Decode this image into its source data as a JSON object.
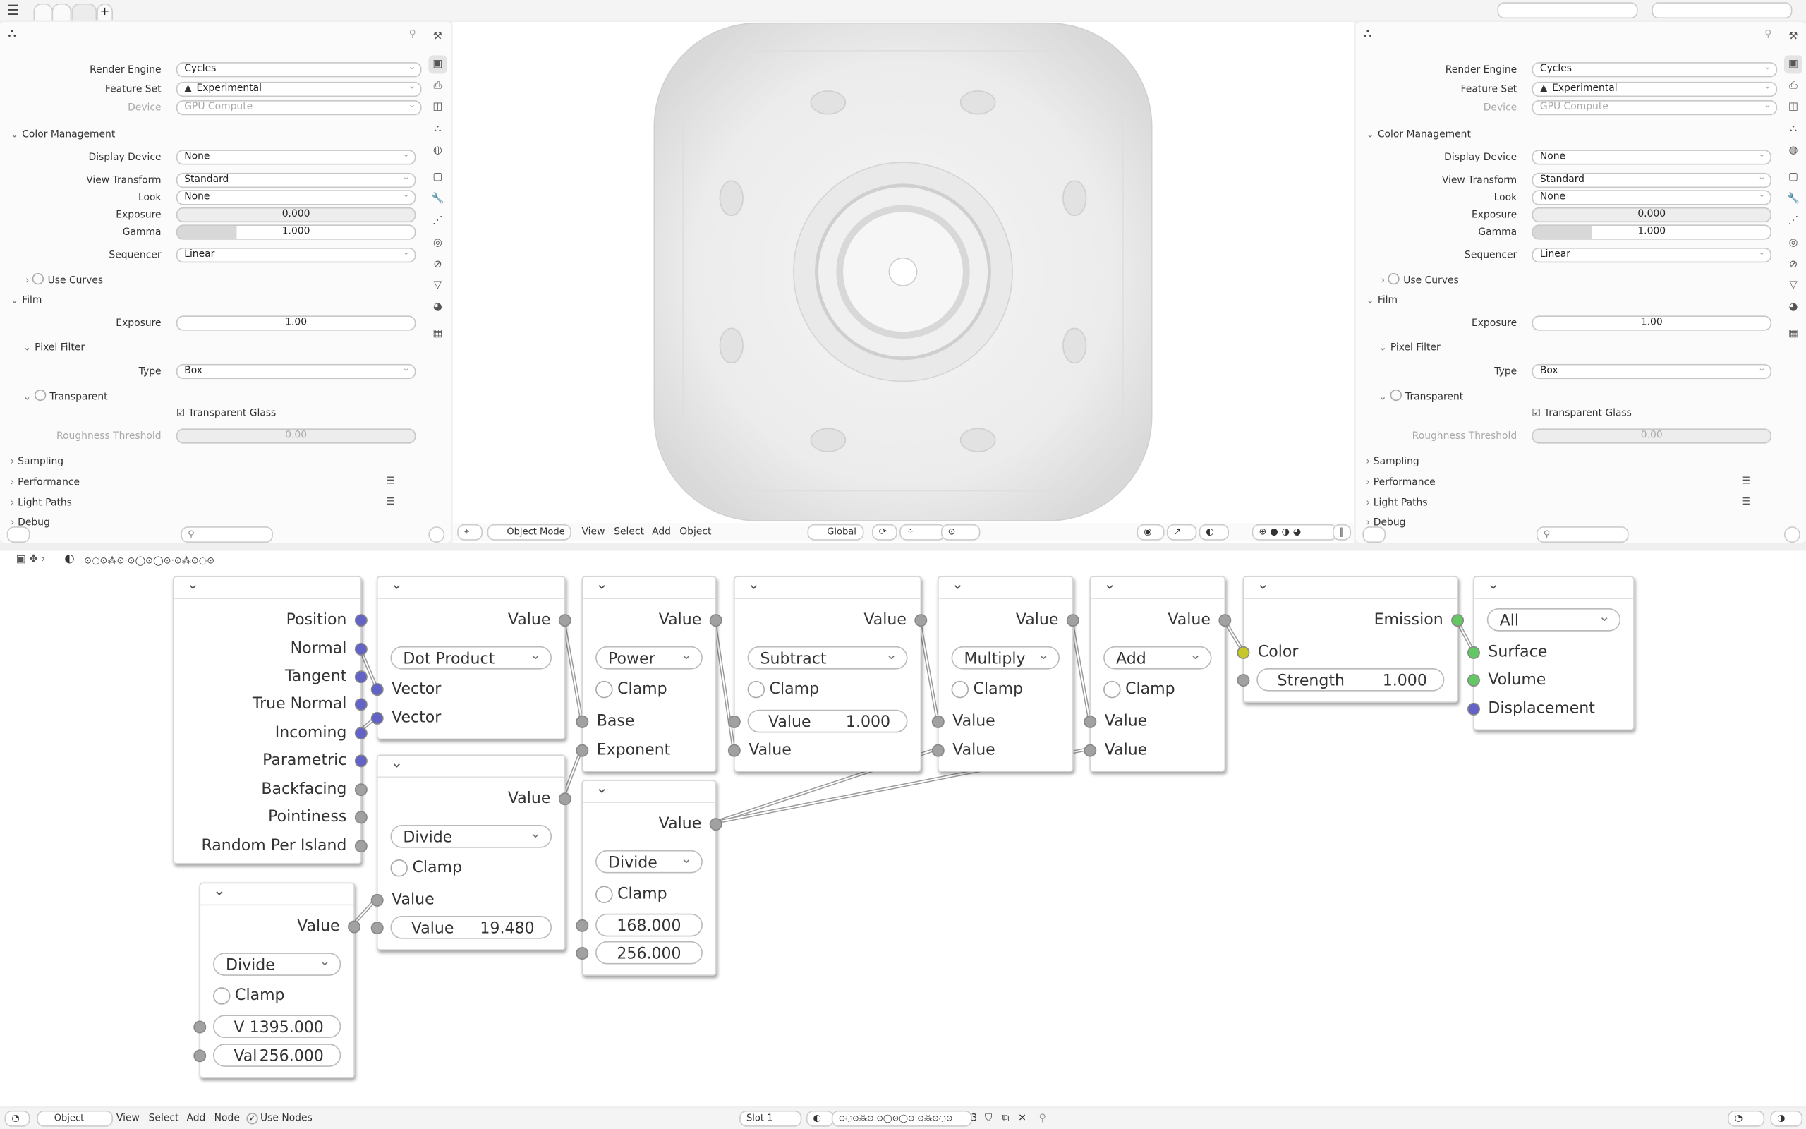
{
  "topbar": {
    "menu_icon": "hamburger-menu-icon",
    "add_tab_label": "+"
  },
  "properties": {
    "render_engine_label": "Render Engine",
    "render_engine": "Cycles",
    "feature_set_label": "Feature Set",
    "feature_set": "Experimental",
    "device_label": "Device",
    "device": "GPU Compute",
    "color_management": "Color Management",
    "display_device_label": "Display Device",
    "display_device": "None",
    "view_transform_label": "View Transform",
    "view_transform": "Standard",
    "look_label": "Look",
    "look": "None",
    "exposure_label": "Exposure",
    "exposure": "0.000",
    "gamma_label": "Gamma",
    "gamma": "1.000",
    "gamma_fill_fraction": 0.25,
    "sequencer_label": "Sequencer",
    "sequencer": "Linear",
    "use_curves": "Use Curves",
    "film": "Film",
    "film_exposure_label": "Exposure",
    "film_exposure": "1.00",
    "pixel_filter": "Pixel Filter",
    "type_label": "Type",
    "type": "Box",
    "transparent": "Transparent",
    "transparent_glass": "Transparent Glass",
    "roughness_label": "Roughness Threshold",
    "roughness": "0.00",
    "sampling": "Sampling",
    "performance": "Performance",
    "light_paths": "Light Paths",
    "debug": "Debug"
  },
  "viewport_header": {
    "mode": "Object Mode",
    "menus": [
      "View",
      "Select",
      "Add",
      "Object"
    ],
    "orientation": "Global"
  },
  "node_editor": {
    "breadcrumb_material": "⊙◌⊙⁂⊙·⊙◯⊙◯⊙·⊙⁂⊙◌⊙",
    "nodes": [
      {
        "rows": [
          {
            "t": "out",
            "label": "Position",
            "c": "#6363c7"
          },
          {
            "t": "out",
            "label": "Normal",
            "c": "#6363c7"
          },
          {
            "t": "out",
            "label": "Tangent",
            "c": "#6363c7"
          },
          {
            "t": "out",
            "label": "True Normal",
            "c": "#6363c7"
          },
          {
            "t": "out",
            "label": "Incoming",
            "c": "#6363c7"
          },
          {
            "t": "out",
            "label": "Parametric",
            "c": "#6363c7"
          },
          {
            "t": "out",
            "label": "Backfacing",
            "c": "#a1a1a1"
          },
          {
            "t": "out",
            "label": "Pointiness",
            "c": "#a1a1a1"
          },
          {
            "t": "out",
            "label": "Random Per Island",
            "c": "#a1a1a1"
          }
        ]
      },
      {
        "rows": [
          {
            "t": "out",
            "label": "Value",
            "c": "#a1a1a1"
          },
          {
            "t": "dd",
            "label": "Dot Product"
          },
          {
            "t": "in",
            "label": "Vector",
            "c": "#6363c7"
          },
          {
            "t": "in",
            "label": "Vector",
            "c": "#6363c7"
          }
        ]
      },
      {
        "rows": [
          {
            "t": "out",
            "label": "Value",
            "c": "#a1a1a1"
          },
          {
            "t": "dd",
            "label": "Divide"
          },
          {
            "t": "chk",
            "label": "Clamp"
          },
          {
            "t": "in",
            "label": "Value",
            "c": "#a1a1a1"
          },
          {
            "t": "field",
            "label": "Value",
            "value": "19.480",
            "c": "#a1a1a1"
          }
        ]
      },
      {
        "rows": [
          {
            "t": "out",
            "label": "Value",
            "c": "#a1a1a1"
          },
          {
            "t": "dd",
            "label": "Divide"
          },
          {
            "t": "chk",
            "label": "Clamp"
          },
          {
            "t": "field",
            "label": "V",
            "value": "1395.000",
            "c": "#a1a1a1"
          },
          {
            "t": "field",
            "label": "Val",
            "value": "256.000",
            "c": "#a1a1a1"
          }
        ]
      },
      {
        "rows": [
          {
            "t": "out",
            "label": "Value",
            "c": "#a1a1a1"
          },
          {
            "t": "dd",
            "label": "Power"
          },
          {
            "t": "chk",
            "label": "Clamp"
          },
          {
            "t": "in",
            "label": "Base",
            "c": "#a1a1a1"
          },
          {
            "t": "in",
            "label": "Exponent",
            "c": "#a1a1a1"
          }
        ]
      },
      {
        "rows": [
          {
            "t": "out",
            "label": "Value",
            "c": "#a1a1a1"
          },
          {
            "t": "dd",
            "label": "Divide"
          },
          {
            "t": "chk",
            "label": "Clamp"
          },
          {
            "t": "field",
            "label": "",
            "value": "168.000",
            "c": "#a1a1a1"
          },
          {
            "t": "field",
            "label": "",
            "value": "256.000",
            "c": "#a1a1a1"
          }
        ]
      },
      {
        "rows": [
          {
            "t": "out",
            "label": "Value",
            "c": "#a1a1a1"
          },
          {
            "t": "dd",
            "label": "Subtract"
          },
          {
            "t": "chk",
            "label": "Clamp"
          },
          {
            "t": "field",
            "label": "Value",
            "value": "1.000",
            "c": "#a1a1a1"
          },
          {
            "t": "in",
            "label": "Value",
            "c": "#a1a1a1"
          }
        ]
      },
      {
        "rows": [
          {
            "t": "out",
            "label": "Value",
            "c": "#a1a1a1"
          },
          {
            "t": "dd",
            "label": "Multiply"
          },
          {
            "t": "chk",
            "label": "Clamp"
          },
          {
            "t": "in",
            "label": "Value",
            "c": "#a1a1a1"
          },
          {
            "t": "in",
            "label": "Value",
            "c": "#a1a1a1"
          }
        ]
      },
      {
        "rows": [
          {
            "t": "out",
            "label": "Value",
            "c": "#a1a1a1"
          },
          {
            "t": "dd",
            "label": "Add"
          },
          {
            "t": "chk",
            "label": "Clamp"
          },
          {
            "t": "in",
            "label": "Value",
            "c": "#a1a1a1"
          },
          {
            "t": "in",
            "label": "Value",
            "c": "#a1a1a1"
          }
        ]
      },
      {
        "rows": [
          {
            "t": "out",
            "label": "Emission",
            "c": "#63c763"
          },
          {
            "t": "in",
            "label": "Color",
            "c": "#c7c729"
          },
          {
            "t": "field",
            "label": "Strength",
            "value": "1.000",
            "c": "#a1a1a1"
          }
        ]
      },
      {
        "rows": [
          {
            "t": "dd",
            "label": "All"
          },
          {
            "t": "in",
            "label": "Surface",
            "c": "#63c763"
          },
          {
            "t": "in",
            "label": "Volume",
            "c": "#63c763"
          },
          {
            "t": "in",
            "label": "Displacement",
            "c": "#6363c7"
          }
        ]
      }
    ]
  },
  "node_header": {
    "object_label": "Object",
    "menus": [
      "View",
      "Select",
      "Add",
      "Node"
    ],
    "use_nodes": "Use Nodes",
    "slot": "Slot 1",
    "material": "⊙◌⊙⁂⊙·⊙◯⊙◯⊙·⊙⁂⊙◌⊙",
    "users": "3"
  }
}
